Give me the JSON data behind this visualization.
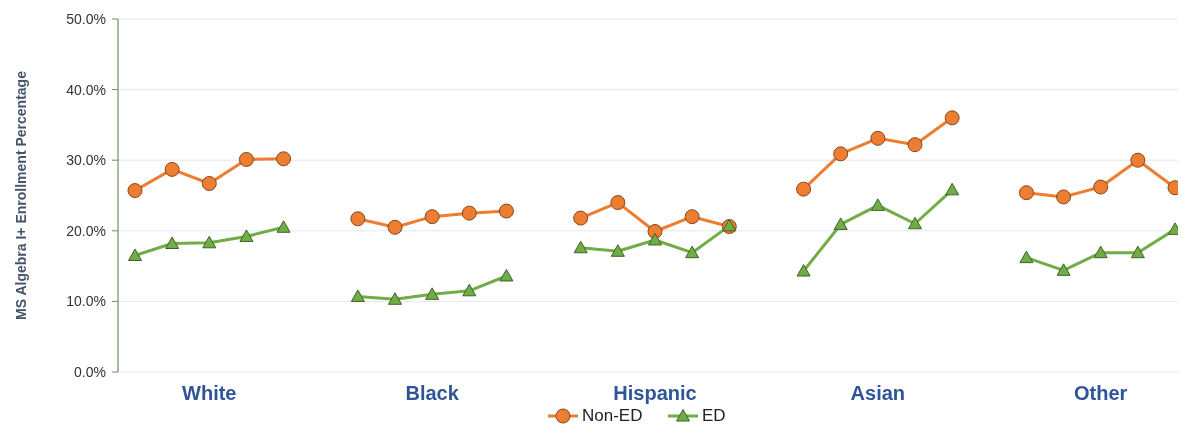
{
  "chart_data": {
    "type": "line",
    "ylabel": "MS Algebra I+ Enrollment Percentage",
    "categories": [
      null,
      null,
      "White",
      null,
      null,
      null,
      null,
      null,
      "Black",
      null,
      null,
      null,
      null,
      null,
      "Hispanic",
      null,
      null,
      null,
      null,
      null,
      "Asian",
      null,
      null,
      null,
      null,
      null,
      "Other",
      null,
      null
    ],
    "series": [
      {
        "name": "Non-ED",
        "color": "#ed7d31",
        "marker": "circle",
        "values": [
          25.7,
          28.7,
          26.7,
          30.1,
          30.2,
          null,
          21.7,
          20.5,
          22.0,
          22.5,
          22.8,
          null,
          21.8,
          24.0,
          19.9,
          22.0,
          20.6,
          null,
          25.9,
          30.9,
          33.1,
          32.2,
          36.0,
          null,
          25.4,
          24.8,
          26.2,
          30.0,
          26.1
        ]
      },
      {
        "name": "ED",
        "color": "#70ad47",
        "marker": "triangle",
        "values": [
          16.5,
          18.2,
          18.3,
          19.2,
          20.5,
          null,
          10.7,
          10.3,
          11.0,
          11.5,
          13.6,
          null,
          17.6,
          17.1,
          18.7,
          16.9,
          20.7,
          null,
          14.3,
          20.9,
          23.6,
          21.0,
          25.8,
          null,
          16.2,
          14.4,
          16.9,
          16.9,
          20.2
        ]
      }
    ],
    "ylim": [
      0,
      50
    ],
    "yticks": [
      {
        "value": 0,
        "label": "0.0%"
      },
      {
        "value": 10,
        "label": "10.0%"
      },
      {
        "value": 20,
        "label": "20.0%"
      },
      {
        "value": 30,
        "label": "30.0%"
      },
      {
        "value": 40,
        "label": "40.0%"
      },
      {
        "value": 50,
        "label": "50.0%"
      }
    ],
    "grid": "y",
    "legend": "bottom"
  }
}
